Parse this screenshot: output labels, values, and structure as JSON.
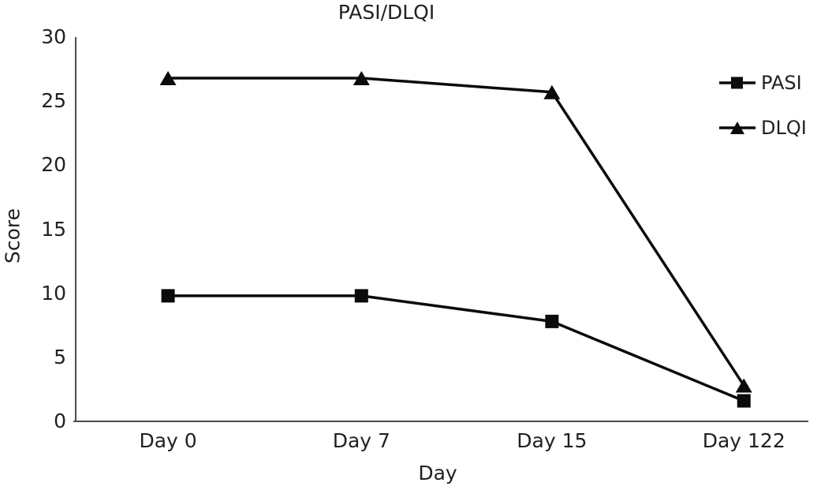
{
  "title": "PASI/DLQI",
  "chart_data": {
    "type": "line",
    "categories": [
      "Day 0",
      "Day 7",
      "Day 15",
      "Day 122"
    ],
    "series": [
      {
        "name": "PASI",
        "marker": "square",
        "values": [
          9.8,
          9.8,
          7.8,
          1.6
        ]
      },
      {
        "name": "DLQI",
        "marker": "triangle",
        "values": [
          26.8,
          26.8,
          25.7,
          2.8
        ]
      }
    ],
    "xlabel": "Day",
    "ylabel": "Score",
    "ylim": [
      0,
      30
    ],
    "yticks": [
      0,
      5,
      10,
      15,
      20,
      25,
      30
    ],
    "grid": false,
    "legend_position": "right",
    "colors": {
      "line": "#0d0a0a",
      "marker": "#0d0a0a",
      "axis": "#4d4d4d",
      "text": "#231f20",
      "background": "#ffffff"
    }
  }
}
